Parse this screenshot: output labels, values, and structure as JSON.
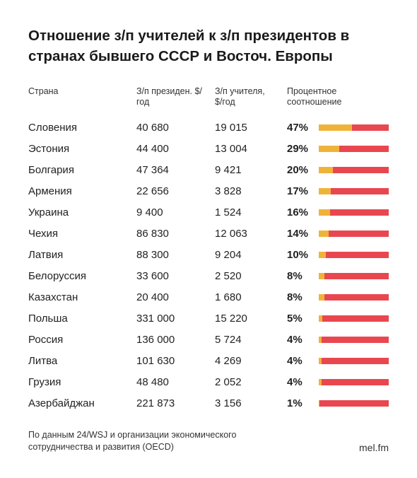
{
  "title": "Отношение з/п учителей к з/п президентов в странах бывшего СССР и Восточ. Европы",
  "headers": {
    "country": "Страна",
    "president": "З/п президен. $/год",
    "teacher": "З/п учителя, $/год",
    "ratio": "Процентное соотношение"
  },
  "colors": {
    "bar_background": "#e9474f",
    "bar_fill": "#f0b33a"
  },
  "chart_data": {
    "type": "table",
    "columns": [
      "Страна",
      "З/п президен. $/год",
      "З/п учителя, $/год",
      "Процентное соотношение"
    ],
    "rows": [
      {
        "country": "Словения",
        "president": "40 680",
        "teacher": "19 015",
        "pct_label": "47%",
        "pct": 47
      },
      {
        "country": "Эстония",
        "president": "44 400",
        "teacher": "13 004",
        "pct_label": "29%",
        "pct": 29
      },
      {
        "country": "Болгария",
        "president": "47 364",
        "teacher": "9 421",
        "pct_label": "20%",
        "pct": 20
      },
      {
        "country": "Армения",
        "president": "22 656",
        "teacher": "3 828",
        "pct_label": "17%",
        "pct": 17
      },
      {
        "country": "Украина",
        "president": "9 400",
        "teacher": "1 524",
        "pct_label": "16%",
        "pct": 16
      },
      {
        "country": "Чехия",
        "president": "86 830",
        "teacher": "12 063",
        "pct_label": "14%",
        "pct": 14
      },
      {
        "country": "Латвия",
        "president": "88 300",
        "teacher": "9 204",
        "pct_label": "10%",
        "pct": 10
      },
      {
        "country": "Белоруссия",
        "president": "33 600",
        "teacher": "2 520",
        "pct_label": "8%",
        "pct": 8
      },
      {
        "country": "Казахстан",
        "president": "20 400",
        "teacher": "1 680",
        "pct_label": "8%",
        "pct": 8
      },
      {
        "country": "Польша",
        "president": "331 000",
        "teacher": "15 220",
        "pct_label": "5%",
        "pct": 5
      },
      {
        "country": "Россия",
        "president": "136 000",
        "teacher": "5 724",
        "pct_label": "4%",
        "pct": 4
      },
      {
        "country": "Литва",
        "president": "101 630",
        "teacher": "4 269",
        "pct_label": "4%",
        "pct": 4
      },
      {
        "country": "Грузия",
        "president": "48 480",
        "teacher": "2 052",
        "pct_label": "4%",
        "pct": 4
      },
      {
        "country": "Азербайджан",
        "president": "221 873",
        "teacher": "3 156",
        "pct_label": "1%",
        "pct": 1
      }
    ]
  },
  "footer": {
    "source": "По данным 24/WSJ и организации экономического сотрудничества и развития (OECD)",
    "brand": "mel.fm"
  }
}
